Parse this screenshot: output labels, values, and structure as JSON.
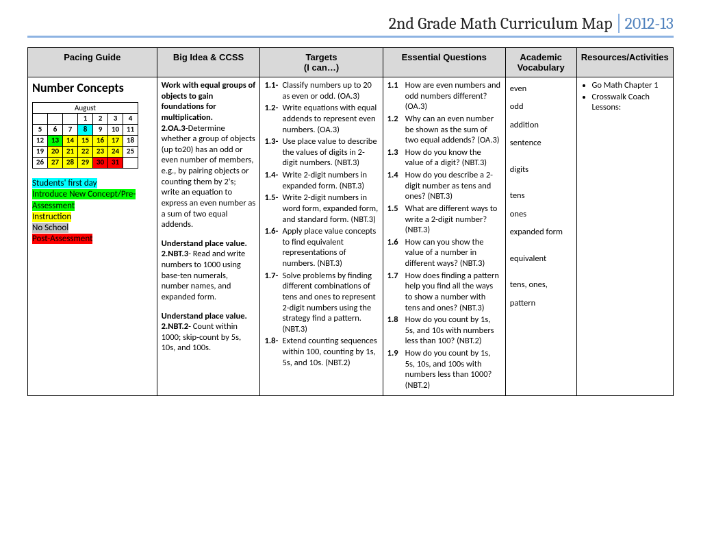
{
  "header": {
    "title": "2nd Grade Math Curriculum Map",
    "year": "2012-13"
  },
  "columns": [
    "Pacing Guide",
    "Big Idea & CCSS",
    "Targets\n(I can…)",
    "Essential Questions",
    "Academic Vocabulary",
    "Resources/Activities"
  ],
  "col_widths": [
    "20%",
    "16%",
    "19%",
    "19%",
    "11%",
    "15%"
  ],
  "pacing": {
    "section_title": "Number Concepts",
    "month": "August",
    "calendar": {
      "rows": [
        [
          "",
          "",
          "",
          "1",
          "2",
          "3",
          "4"
        ],
        [
          "5",
          "6",
          "7",
          "8",
          "9",
          "10",
          "11"
        ],
        [
          "12",
          "13",
          "14",
          "15",
          "16",
          "17",
          "18"
        ],
        [
          "19",
          "20",
          "21",
          "22",
          "23",
          "24",
          "25"
        ],
        [
          "26",
          "27",
          "28",
          "29",
          "30",
          "31",
          ""
        ]
      ],
      "colors": [
        [
          "",
          "",
          "",
          "",
          "",
          "",
          ""
        ],
        [
          "",
          "",
          "",
          "#00ffff",
          "",
          "",
          ""
        ],
        [
          "",
          "#00ff00",
          "#ffff00",
          "#ffff00",
          "#ffff00",
          "#ffff00",
          ""
        ],
        [
          "",
          "#ffff00",
          "#ffff00",
          "#ffff00",
          "#ffff00",
          "#ffff00",
          ""
        ],
        [
          "",
          "#ffff00",
          "#ffff00",
          "#ffff00",
          "#ff0000",
          "#ff0000",
          ""
        ]
      ]
    },
    "legend": [
      {
        "text": "Students' first day",
        "bg": "#00ffff"
      },
      {
        "text": "Introduce New Concept/Pre-Assessment",
        "bg": "#00ff00"
      },
      {
        "text": "Instruction",
        "bg": "#ffff00"
      },
      {
        "text": "No School",
        "bg": "#bfbfbf"
      },
      {
        "text": "Post-Assessment",
        "bg": "#ff0000"
      }
    ]
  },
  "big_idea": [
    {
      "bold": true,
      "text": "Work with equal groups of objects to gain foundations for multiplication."
    },
    {
      "bold": false,
      "text": " 2.OA.3-Determine whether a group of objects (up to20) has an odd or even number of members, e.g., by pairing objects or counting them by 2's; write an equation to express an even number as a sum of two equal addends.",
      "lead_bold": " 2.OA.3"
    },
    {
      "spacer": true
    },
    {
      "bold": true,
      "text": "Understand place value."
    },
    {
      "bold": false,
      "text": "2.NBT.3- Read and write numbers to 1000 using base-ten numerals, number names, and expanded form.",
      "lead_bold": "2.NBT.3"
    },
    {
      "spacer": true
    },
    {
      "bold": true,
      "text": "Understand place value."
    },
    {
      "bold": false,
      "text": "2.NBT.2- Count within 1000; skip-count by 5s, 10s, and 100s.",
      "lead_bold": "2.NBT.2"
    }
  ],
  "targets": [
    {
      "n": "1.1-",
      "t": "Classify numbers up to 20 as even or odd. (OA.3)"
    },
    {
      "n": "1.2-",
      "t": "Write equations with equal addends to represent even numbers. (OA.3)"
    },
    {
      "n": "1.3-",
      "t": "Use place value to describe the values of digits in 2-digit numbers.  (NBT.3)"
    },
    {
      "n": "1.4-",
      "t": "Write 2-digit numbers in expanded form. (NBT.3)"
    },
    {
      "n": "1.5-",
      "t": "Write 2-digit numbers in word form, expanded form, and standard form. (NBT.3)"
    },
    {
      "n": "1.6-",
      "t": "Apply place value concepts to find equivalent representations of numbers. (NBT.3)"
    },
    {
      "n": "1.7-",
      "t": "Solve problems by finding different combinations of tens and ones to represent 2-digit numbers using the strategy find a pattern. (NBT.3)"
    },
    {
      "n": "1.8-",
      "t": "Extend counting sequences within 100, counting by 1s, 5s, and 10s. (NBT.2)"
    }
  ],
  "questions": [
    {
      "n": "1.1",
      "t": "How are even numbers and odd numbers different? (OA.3)"
    },
    {
      "n": "1.2",
      "t": "Why can an even number be shown as the sum of two equal addends? (OA.3)"
    },
    {
      "n": "1.3",
      "t": "How do you know the value of a digit? (NBT.3)"
    },
    {
      "n": "1.4",
      "t": "How do you describe a 2-digit number as tens and ones? (NBT.3)"
    },
    {
      "n": "1.5",
      "t": "What are different ways to write a 2-digit number? (NBT.3)"
    },
    {
      "n": "1.6",
      "t": "How can you show the value of a number in different ways? (NBT.3)"
    },
    {
      "n": "1.7",
      "t": "How does finding a pattern help you find all the ways to show a number with tens and ones? (NBT.3)"
    },
    {
      "n": "1.8",
      "t": "How do you count by 1s, 5s, and 10s with numbers less than 100? (NBT.2)"
    },
    {
      "n": "1.9",
      "t": "How do you count by 1s, 5s, 10s, and 100s with numbers less than 1000? (NBT.2)"
    }
  ],
  "vocab": [
    "even",
    "odd",
    "addition sentence",
    "",
    "digits",
    "",
    "tens",
    "ones",
    "expanded form",
    "",
    "equivalent",
    "",
    "tens, ones, pattern"
  ],
  "resources": [
    "Go Math Chapter 1",
    "Crosswalk Coach Lessons:"
  ]
}
